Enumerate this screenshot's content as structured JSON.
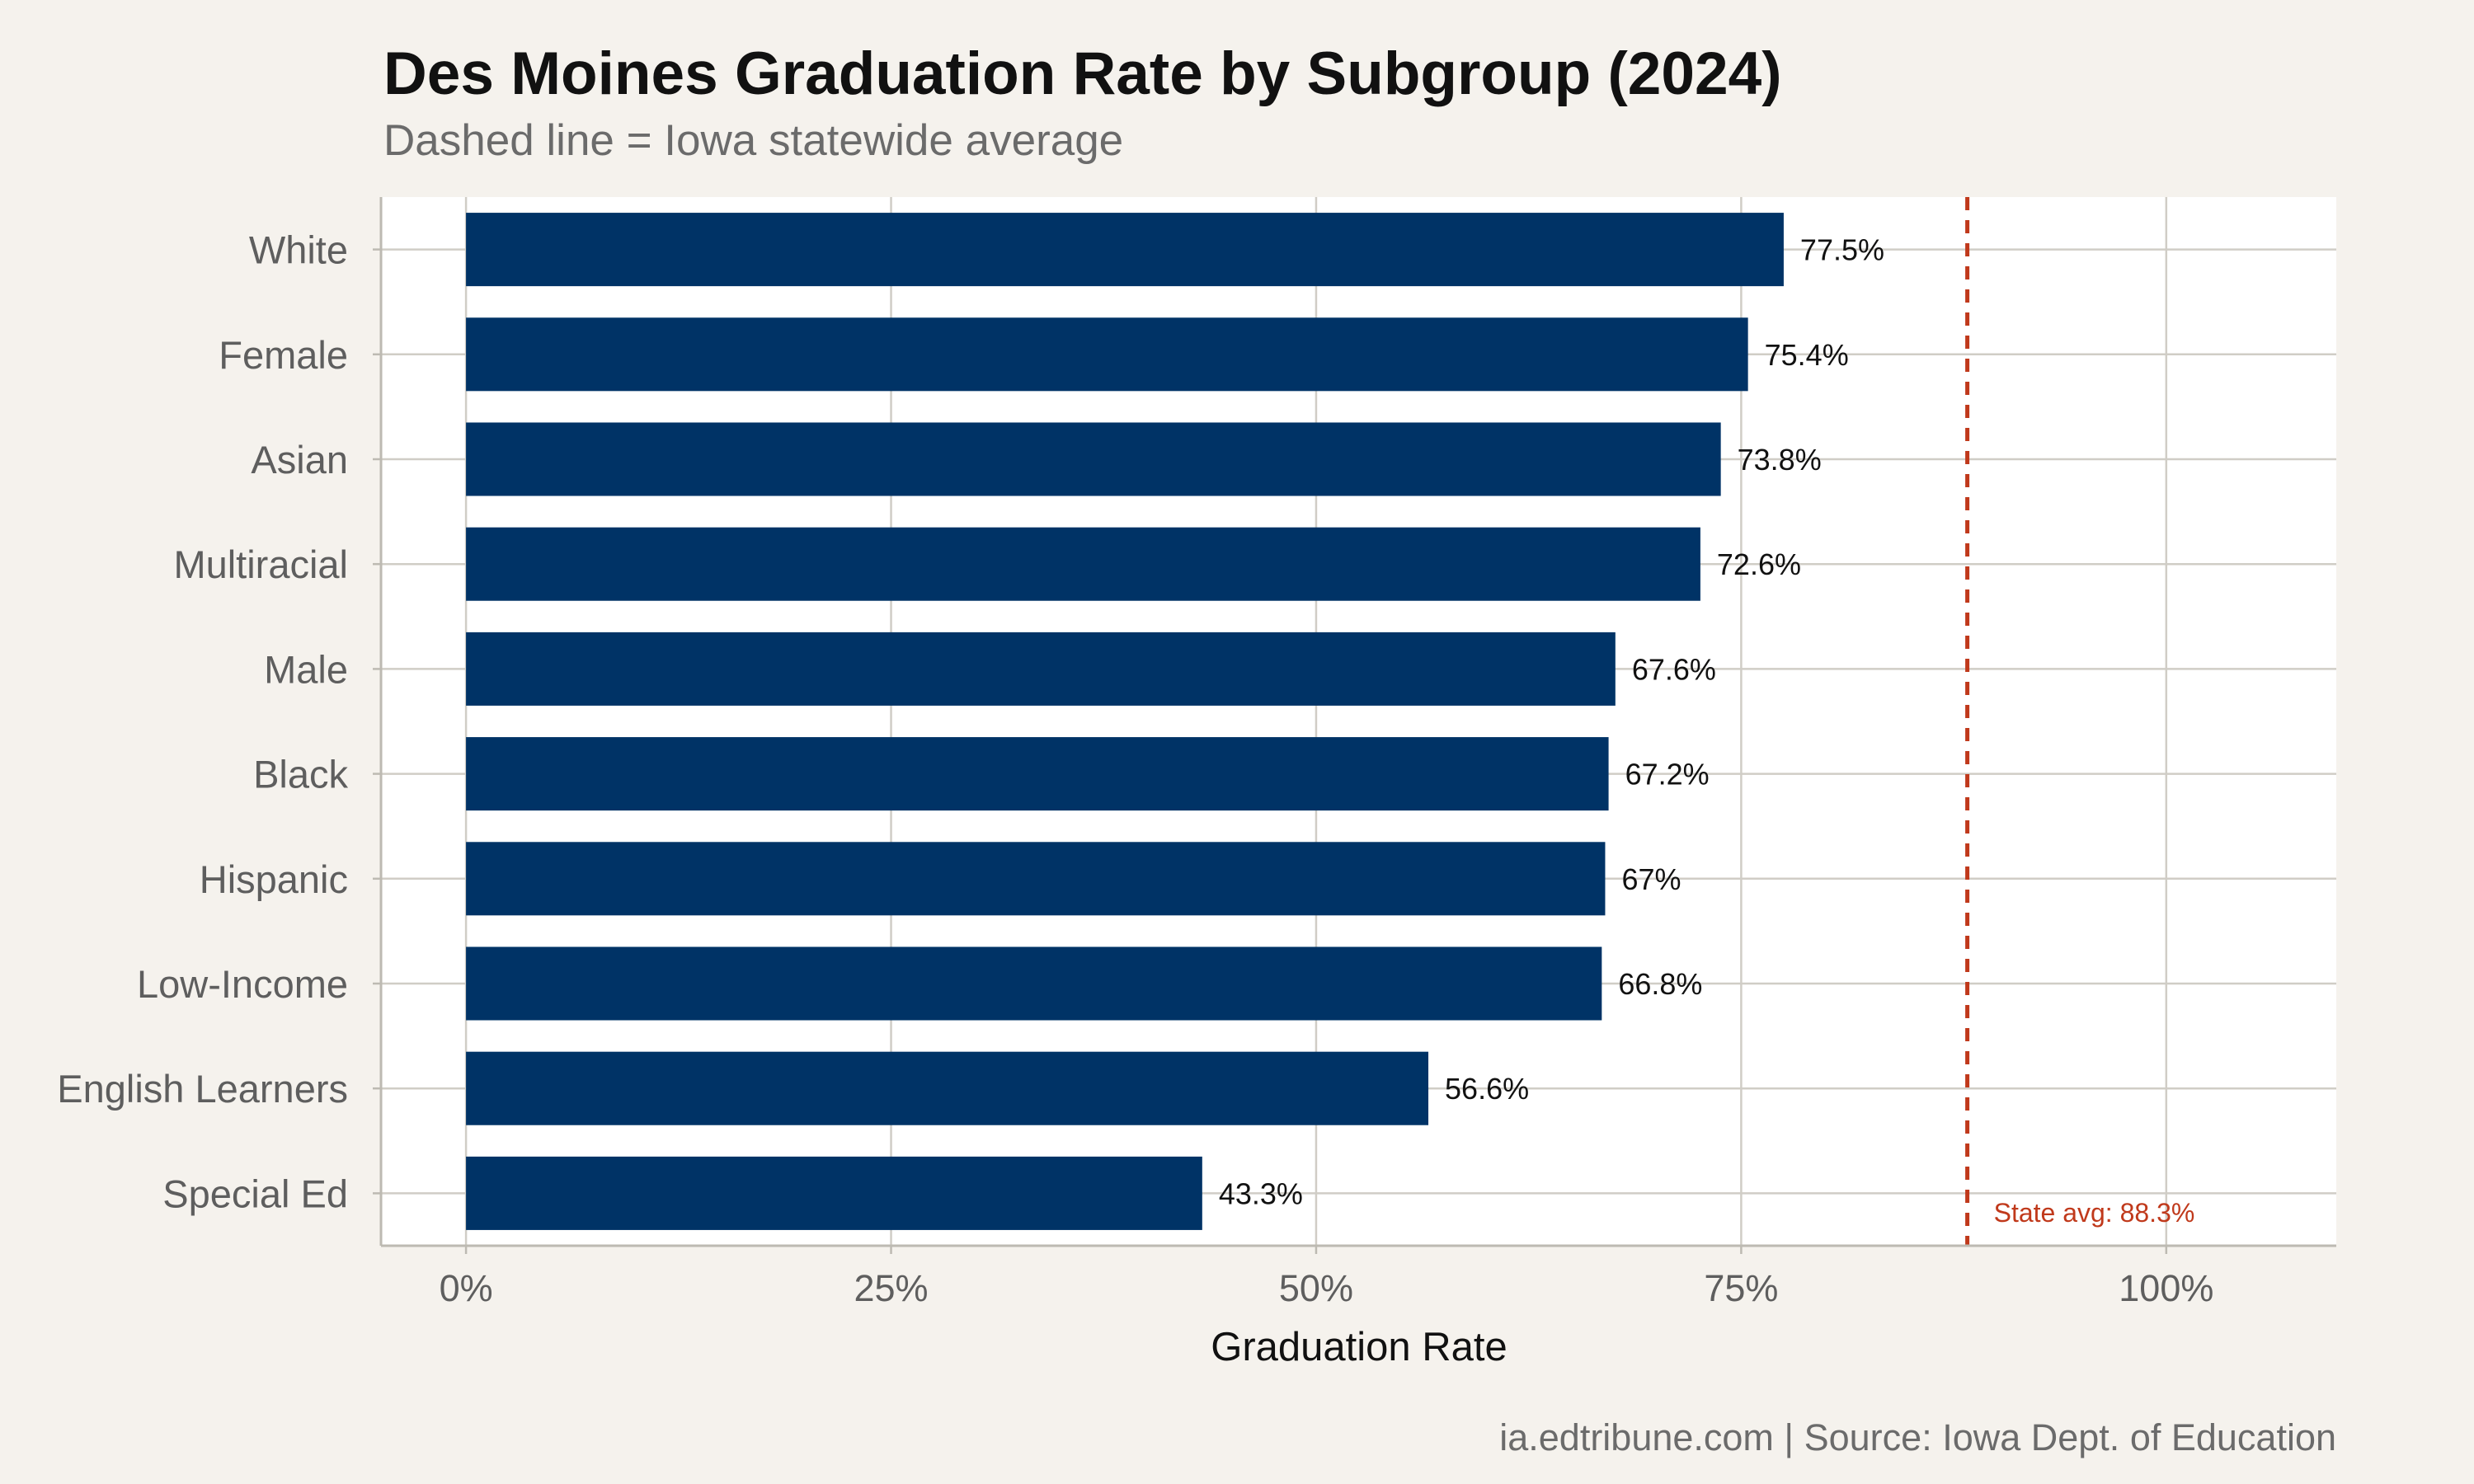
{
  "chart_data": {
    "type": "bar",
    "orientation": "horizontal",
    "title": "Des Moines Graduation Rate by Subgroup (2024)",
    "subtitle": "Dashed line = Iowa statewide average",
    "xlabel": "Graduation Rate",
    "ylabel": "",
    "caption": "ia.edtribune.com | Source: Iowa Dept. of Education",
    "categories": [
      "White",
      "Female",
      "Asian",
      "Multiracial",
      "Male",
      "Black",
      "Hispanic",
      "Low-Income",
      "English Learners",
      "Special Ed"
    ],
    "values": [
      77.5,
      75.4,
      73.8,
      72.6,
      67.6,
      67.2,
      67,
      66.8,
      56.6,
      43.3
    ],
    "value_labels": [
      "77.5%",
      "75.4%",
      "73.8%",
      "72.6%",
      "67.6%",
      "67.2%",
      "67%",
      "66.8%",
      "56.6%",
      "43.3%"
    ],
    "xlim": [
      -5,
      110
    ],
    "x_ticks": [
      0,
      25,
      50,
      75,
      100
    ],
    "x_tick_labels": [
      "0%",
      "25%",
      "50%",
      "75%",
      "100%"
    ],
    "reference_line": {
      "value": 88.3,
      "label": "State avg: 88.3%",
      "style": "dashed",
      "color": "#c0391b"
    },
    "bar_color": "#003366",
    "grid": true
  }
}
